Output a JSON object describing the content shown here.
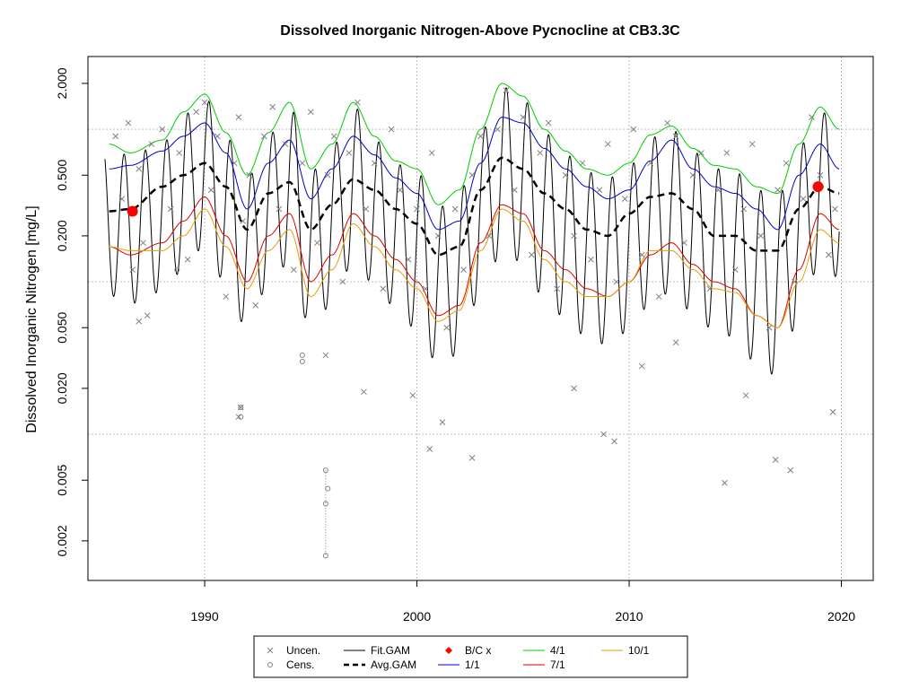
{
  "chart_data": {
    "type": "line",
    "title": "Dissolved Inorganic Nitrogen-Above Pycnocline at CB3.3C",
    "xlabel": "",
    "ylabel": "Dissolved Inorganic Nitrogen [mg/L]",
    "y_scale": "log",
    "xlim": [
      1984.5,
      2021.5
    ],
    "ylim": [
      0.0011,
      3.0
    ],
    "x_ticks": [
      "1990",
      "2000",
      "2010",
      "2020"
    ],
    "x_tick_values": [
      1990,
      2000,
      2010,
      2020
    ],
    "y_ticks": [
      "0.002",
      "0.005",
      "0.020",
      "0.050",
      "0.200",
      "0.500",
      "2.000"
    ],
    "y_tick_values": [
      0.002,
      0.005,
      0.02,
      0.05,
      0.2,
      0.5,
      2.0
    ],
    "grid": true,
    "legend_position": "bottom",
    "legend": [
      {
        "label": "Uncen.",
        "symbol": "x",
        "color": "#808080"
      },
      {
        "label": "Cens.",
        "symbol": "o",
        "color": "#808080"
      },
      {
        "label": "Fit.GAM",
        "symbol": "line",
        "color": "#000000"
      },
      {
        "label": "Avg.GAM",
        "symbol": "dashed",
        "color": "#000000"
      },
      {
        "label": "B/C x",
        "symbol": "diamond",
        "color": "#ff0000"
      },
      {
        "label": "1/1",
        "symbol": "line",
        "color": "#0000c8"
      },
      {
        "label": "4/1",
        "symbol": "line",
        "color": "#00cc00"
      },
      {
        "label": "7/1",
        "symbol": "line",
        "color": "#dd0000"
      },
      {
        "label": "10/1",
        "symbol": "line",
        "color": "#e69f00"
      }
    ],
    "series": [
      {
        "name": "Avg.GAM",
        "color": "#000000",
        "x": [
          1985.5,
          1986.5,
          1988,
          1989,
          1990,
          1991,
          1992,
          1993,
          1994,
          1995,
          1996,
          1997,
          1998,
          1999,
          2000,
          2001,
          2002,
          2003,
          2004,
          2005,
          2006,
          2007,
          2008,
          2009,
          2010,
          2011,
          2012,
          2013,
          2014,
          2015,
          2016,
          2017,
          2018,
          2019,
          2019.9
        ],
        "y": [
          0.29,
          0.3,
          0.42,
          0.5,
          0.6,
          0.42,
          0.22,
          0.38,
          0.45,
          0.22,
          0.32,
          0.47,
          0.4,
          0.3,
          0.24,
          0.15,
          0.17,
          0.4,
          0.65,
          0.55,
          0.38,
          0.3,
          0.22,
          0.2,
          0.28,
          0.36,
          0.38,
          0.3,
          0.2,
          0.2,
          0.16,
          0.16,
          0.3,
          0.42,
          0.38
        ]
      },
      {
        "name": "1/1",
        "color": "#0000c8",
        "x": [
          1985.5,
          1986.5,
          1988,
          1989,
          1990,
          1991,
          1992,
          1993,
          1994,
          1995,
          1996,
          1997,
          1998,
          1999,
          2000,
          2001,
          2002,
          2003,
          2004,
          2005,
          2006,
          2007,
          2008,
          2009,
          2010,
          2011,
          2012,
          2013,
          2014,
          2015,
          2016,
          2017,
          2018,
          2019,
          2019.9
        ],
        "y": [
          0.55,
          0.58,
          0.72,
          0.9,
          1.1,
          0.7,
          0.3,
          0.6,
          0.85,
          0.35,
          0.55,
          0.9,
          0.68,
          0.48,
          0.38,
          0.22,
          0.25,
          0.6,
          1.2,
          1.1,
          0.75,
          0.55,
          0.42,
          0.35,
          0.4,
          0.62,
          0.85,
          0.55,
          0.42,
          0.38,
          0.3,
          0.22,
          0.5,
          0.8,
          0.55
        ]
      },
      {
        "name": "4/1",
        "color": "#00cc00",
        "x": [
          1985.5,
          1986.5,
          1988,
          1989,
          1990,
          1991,
          1992,
          1993,
          1994,
          1995,
          1996,
          1997,
          1998,
          1999,
          2000,
          2001,
          2002,
          2003,
          2004,
          2005,
          2006,
          2007,
          2008,
          2009,
          2010,
          2011,
          2012,
          2013,
          2014,
          2015,
          2016,
          2017,
          2018,
          2019,
          2019.9
        ],
        "y": [
          0.8,
          0.7,
          0.85,
          1.3,
          1.7,
          0.95,
          0.5,
          0.95,
          1.5,
          0.55,
          0.8,
          1.5,
          0.9,
          0.62,
          0.55,
          0.32,
          0.4,
          1.0,
          2.0,
          1.65,
          1.0,
          0.72,
          0.55,
          0.5,
          0.6,
          0.92,
          1.05,
          0.75,
          0.58,
          0.55,
          0.42,
          0.38,
          0.8,
          1.4,
          1.0
        ]
      },
      {
        "name": "7/1",
        "color": "#dd0000",
        "x": [
          1985.5,
          1986.5,
          1988,
          1989,
          1990,
          1991,
          1992,
          1993,
          1994,
          1995,
          1996,
          1997,
          1998,
          1999,
          2000,
          2001,
          2002,
          2003,
          2004,
          2005,
          2006,
          2007,
          2008,
          2009,
          2010,
          2011,
          2012,
          2013,
          2014,
          2015,
          2016,
          2017,
          2018,
          2019,
          2019.9
        ],
        "y": [
          0.17,
          0.15,
          0.18,
          0.25,
          0.36,
          0.2,
          0.1,
          0.2,
          0.28,
          0.1,
          0.15,
          0.28,
          0.2,
          0.14,
          0.1,
          0.06,
          0.07,
          0.18,
          0.32,
          0.28,
          0.16,
          0.12,
          0.09,
          0.08,
          0.1,
          0.15,
          0.18,
          0.13,
          0.1,
          0.09,
          0.06,
          0.05,
          0.12,
          0.28,
          0.22
        ]
      },
      {
        "name": "10/1",
        "color": "#e69f00",
        "x": [
          1985.5,
          1986.5,
          1988,
          1989,
          1990,
          1991,
          1992,
          1993,
          1994,
          1995,
          1996,
          1997,
          1998,
          1999,
          2000,
          2001,
          2002,
          2003,
          2004,
          2005,
          2006,
          2007,
          2008,
          2009,
          2010,
          2011,
          2012,
          2013,
          2014,
          2015,
          2016,
          2017,
          2018,
          2019,
          2019.9
        ],
        "y": [
          0.17,
          0.16,
          0.16,
          0.2,
          0.3,
          0.17,
          0.09,
          0.16,
          0.22,
          0.08,
          0.12,
          0.24,
          0.17,
          0.12,
          0.09,
          0.055,
          0.065,
          0.16,
          0.3,
          0.25,
          0.14,
          0.1,
          0.08,
          0.08,
          0.1,
          0.16,
          0.16,
          0.12,
          0.09,
          0.085,
          0.06,
          0.05,
          0.1,
          0.22,
          0.18
        ]
      }
    ],
    "fit_gam": {
      "name": "Fit.GAM",
      "color": "#000000",
      "x_start": 1985.3,
      "x_end": 2019.9,
      "cycles_per_year": 1,
      "peak_phase_month": 2.5
    },
    "bc_points": {
      "name": "B/C x",
      "color": "#ff0000",
      "x": [
        1986.6,
        2018.9
      ],
      "y": [
        0.29,
        0.42
      ]
    },
    "uncensored": {
      "name": "Uncen.",
      "color": "#808080",
      "x": [
        1985.8,
        1986.1,
        1986.4,
        1986.6,
        1986.9,
        1987.1,
        1987.5,
        1988.0,
        1988.4,
        1988.8,
        1989.2,
        1989.6,
        1990.0,
        1990.3,
        1990.6,
        1991.0,
        1991.4,
        1991.6,
        1991.8,
        1992.1,
        1992.4,
        1992.8,
        1993.2,
        1993.5,
        1993.8,
        1994.2,
        1994.6,
        1995.0,
        1995.3,
        1995.8,
        1996.1,
        1996.5,
        1996.8,
        1997.2,
        1997.6,
        1998.0,
        1998.4,
        1998.8,
        1999.2,
        1999.6,
        2000.0,
        2000.4,
        2000.7,
        2001.0,
        2001.4,
        2001.8,
        2002.2,
        2002.6,
        2003.0,
        2003.4,
        2003.8,
        2004.2,
        2004.6,
        2005.0,
        2005.4,
        2005.8,
        2006.2,
        2006.6,
        2007.0,
        2007.4,
        2007.8,
        2008.2,
        2008.6,
        2009.0,
        2009.4,
        2009.8,
        2010.2,
        2010.6,
        2011.0,
        2011.4,
        2011.8,
        2012.2,
        2012.6,
        2013.0,
        2013.4,
        2013.8,
        2014.2,
        2014.6,
        2015.0,
        2015.4,
        2015.8,
        2016.2,
        2016.6,
        2017.0,
        2017.4,
        2017.8,
        2018.2,
        2018.6,
        2019.0,
        2019.4,
        2019.7,
        1986.9,
        1987.3,
        1991.6,
        1991.7,
        1995.7,
        1997.5,
        1999.8,
        2000.6,
        2001.2,
        2002.6,
        2007.4,
        2008.8,
        2009.3,
        2010.6,
        2012.2,
        2014.5,
        2015.5,
        2016.9,
        2017.6,
        2019.6
      ],
      "y": [
        0.9,
        0.35,
        1.1,
        0.12,
        0.55,
        0.18,
        0.8,
        1.0,
        0.3,
        0.7,
        0.14,
        1.3,
        1.5,
        0.4,
        0.9,
        0.08,
        0.6,
        1.2,
        0.25,
        0.5,
        0.07,
        0.9,
        1.4,
        0.3,
        0.8,
        0.12,
        0.6,
        1.3,
        0.18,
        0.5,
        0.9,
        0.1,
        0.7,
        1.5,
        0.3,
        0.6,
        0.09,
        1.0,
        0.4,
        0.14,
        0.3,
        0.09,
        0.7,
        0.2,
        0.05,
        0.3,
        0.12,
        0.5,
        0.9,
        0.2,
        1.0,
        1.8,
        0.4,
        1.2,
        0.15,
        0.7,
        1.1,
        0.09,
        0.5,
        0.2,
        0.6,
        0.14,
        0.4,
        0.8,
        0.1,
        0.35,
        1.0,
        0.15,
        0.6,
        0.08,
        1.1,
        0.9,
        0.18,
        0.5,
        0.7,
        0.09,
        0.4,
        0.7,
        0.12,
        0.3,
        0.8,
        0.2,
        0.05,
        0.4,
        0.6,
        0.1,
        0.35,
        1.2,
        0.5,
        0.15,
        0.3,
        0.055,
        0.06,
        0.013,
        0.015,
        0.033,
        0.019,
        0.018,
        0.008,
        0.012,
        0.007,
        0.02,
        0.01,
        0.009,
        0.028,
        0.04,
        0.0048,
        0.018,
        0.0068,
        0.0058,
        0.014
      ]
    },
    "censored": {
      "name": "Cens.",
      "color": "#808080",
      "x": [
        1991.7,
        1991.7,
        1994.6,
        1994.6,
        1995.7,
        1995.7,
        1995.7,
        1995.8,
        1988.7
      ],
      "y": [
        0.015,
        0.013,
        0.033,
        0.03,
        0.0058,
        0.0035,
        0.0016,
        0.0044,
        0.12
      ]
    }
  }
}
